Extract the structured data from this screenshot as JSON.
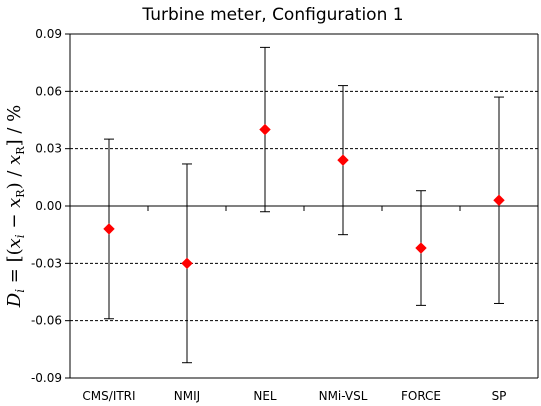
{
  "chart_data": {
    "type": "scatter",
    "title": "Turbine meter, Configuration 1",
    "ylabel": "Di = [(xi − xR) / xR] / %",
    "xlabel": "",
    "categories": [
      "CMS/ITRI",
      "NMIJ",
      "NEL",
      "NMi-VSL",
      "FORCE",
      "SP"
    ],
    "series": [
      {
        "values": [
          -0.012,
          -0.03,
          0.04,
          0.024,
          -0.022,
          0.003
        ],
        "error_upper": [
          0.035,
          0.022,
          0.083,
          0.063,
          0.008,
          0.057
        ],
        "error_lower": [
          -0.059,
          -0.082,
          -0.003,
          -0.015,
          -0.052,
          -0.051
        ]
      }
    ],
    "ylim": [
      -0.09,
      0.09
    ],
    "yticks": [
      -0.09,
      -0.06,
      -0.03,
      0.0,
      0.03,
      0.06,
      0.09
    ],
    "ytick_labels": [
      "-0.09",
      "-0.06",
      "-0.03",
      "0.00",
      "0.03",
      "0.06",
      "0.09"
    ],
    "grid": "horizontal-dashed",
    "marker": "diamond",
    "colors": {
      "marker": "#ff0000",
      "errorbar": "#000000",
      "grid": "#000000",
      "axis": "#000000"
    }
  }
}
